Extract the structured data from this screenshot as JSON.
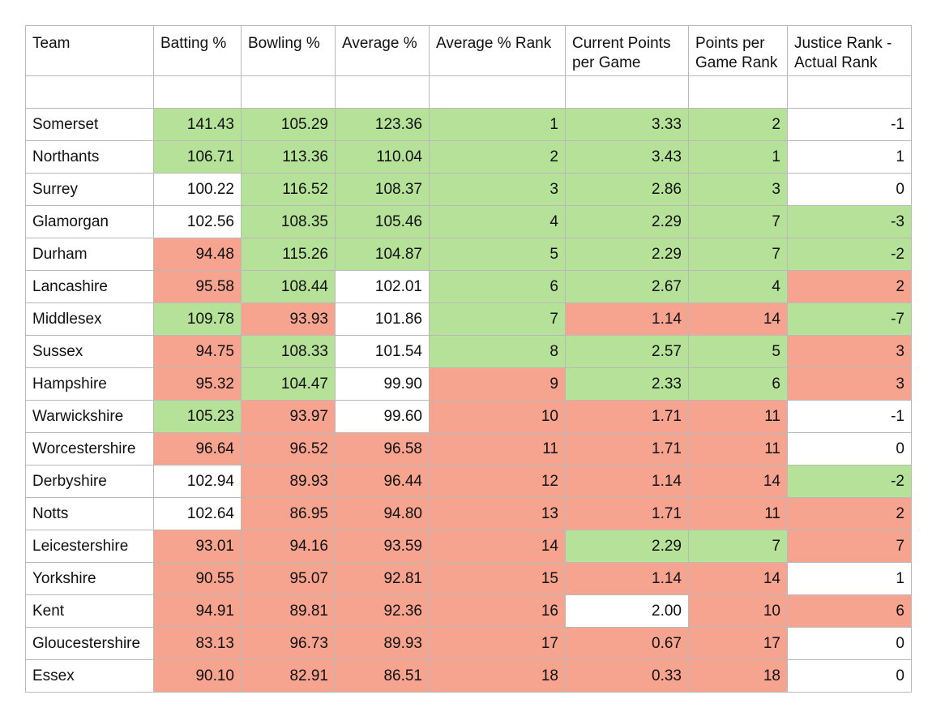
{
  "headers": [
    "Team",
    "Batting %",
    "Bowling %",
    "Average %",
    "Average % Rank",
    "Current Points per Game",
    "Points per Game Rank",
    "Justice Rank - Actual Rank"
  ],
  "rows": [
    {
      "team": "Somerset",
      "cells": [
        [
          "141.43",
          "g"
        ],
        [
          "105.29",
          "g"
        ],
        [
          "123.36",
          "g"
        ],
        [
          "1",
          "g"
        ],
        [
          "3.33",
          "g"
        ],
        [
          "2",
          "g"
        ],
        [
          "-1",
          "w"
        ]
      ]
    },
    {
      "team": "Northants",
      "cells": [
        [
          "106.71",
          "g"
        ],
        [
          "113.36",
          "g"
        ],
        [
          "110.04",
          "g"
        ],
        [
          "2",
          "g"
        ],
        [
          "3.43",
          "g"
        ],
        [
          "1",
          "g"
        ],
        [
          "1",
          "w"
        ]
      ]
    },
    {
      "team": "Surrey",
      "cells": [
        [
          "100.22",
          "w"
        ],
        [
          "116.52",
          "g"
        ],
        [
          "108.37",
          "g"
        ],
        [
          "3",
          "g"
        ],
        [
          "2.86",
          "g"
        ],
        [
          "3",
          "g"
        ],
        [
          "0",
          "w"
        ]
      ]
    },
    {
      "team": "Glamorgan",
      "cells": [
        [
          "102.56",
          "w"
        ],
        [
          "108.35",
          "g"
        ],
        [
          "105.46",
          "g"
        ],
        [
          "4",
          "g"
        ],
        [
          "2.29",
          "g"
        ],
        [
          "7",
          "g"
        ],
        [
          "-3",
          "g"
        ]
      ]
    },
    {
      "team": "Durham",
      "cells": [
        [
          "94.48",
          "r"
        ],
        [
          "115.26",
          "g"
        ],
        [
          "104.87",
          "g"
        ],
        [
          "5",
          "g"
        ],
        [
          "2.29",
          "g"
        ],
        [
          "7",
          "g"
        ],
        [
          "-2",
          "g"
        ]
      ]
    },
    {
      "team": "Lancashire",
      "cells": [
        [
          "95.58",
          "r"
        ],
        [
          "108.44",
          "g"
        ],
        [
          "102.01",
          "w"
        ],
        [
          "6",
          "g"
        ],
        [
          "2.67",
          "g"
        ],
        [
          "4",
          "g"
        ],
        [
          "2",
          "r"
        ]
      ]
    },
    {
      "team": "Middlesex",
      "cells": [
        [
          "109.78",
          "g"
        ],
        [
          "93.93",
          "r"
        ],
        [
          "101.86",
          "w"
        ],
        [
          "7",
          "g"
        ],
        [
          "1.14",
          "r"
        ],
        [
          "14",
          "r"
        ],
        [
          "-7",
          "g"
        ]
      ]
    },
    {
      "team": "Sussex",
      "cells": [
        [
          "94.75",
          "r"
        ],
        [
          "108.33",
          "g"
        ],
        [
          "101.54",
          "w"
        ],
        [
          "8",
          "g"
        ],
        [
          "2.57",
          "g"
        ],
        [
          "5",
          "g"
        ],
        [
          "3",
          "r"
        ]
      ]
    },
    {
      "team": "Hampshire",
      "cells": [
        [
          "95.32",
          "r"
        ],
        [
          "104.47",
          "g"
        ],
        [
          "99.90",
          "w"
        ],
        [
          "9",
          "r"
        ],
        [
          "2.33",
          "g"
        ],
        [
          "6",
          "g"
        ],
        [
          "3",
          "r"
        ]
      ]
    },
    {
      "team": "Warwickshire",
      "cells": [
        [
          "105.23",
          "g"
        ],
        [
          "93.97",
          "r"
        ],
        [
          "99.60",
          "w"
        ],
        [
          "10",
          "r"
        ],
        [
          "1.71",
          "r"
        ],
        [
          "11",
          "r"
        ],
        [
          "-1",
          "w"
        ]
      ]
    },
    {
      "team": "Worcestershire",
      "cells": [
        [
          "96.64",
          "r"
        ],
        [
          "96.52",
          "r"
        ],
        [
          "96.58",
          "r"
        ],
        [
          "11",
          "r"
        ],
        [
          "1.71",
          "r"
        ],
        [
          "11",
          "r"
        ],
        [
          "0",
          "w"
        ]
      ]
    },
    {
      "team": "Derbyshire",
      "cells": [
        [
          "102.94",
          "w"
        ],
        [
          "89.93",
          "r"
        ],
        [
          "96.44",
          "r"
        ],
        [
          "12",
          "r"
        ],
        [
          "1.14",
          "r"
        ],
        [
          "14",
          "r"
        ],
        [
          "-2",
          "g"
        ]
      ]
    },
    {
      "team": "Notts",
      "cells": [
        [
          "102.64",
          "w"
        ],
        [
          "86.95",
          "r"
        ],
        [
          "94.80",
          "r"
        ],
        [
          "13",
          "r"
        ],
        [
          "1.71",
          "r"
        ],
        [
          "11",
          "r"
        ],
        [
          "2",
          "r"
        ]
      ]
    },
    {
      "team": "Leicestershire",
      "cells": [
        [
          "93.01",
          "r"
        ],
        [
          "94.16",
          "r"
        ],
        [
          "93.59",
          "r"
        ],
        [
          "14",
          "r"
        ],
        [
          "2.29",
          "g"
        ],
        [
          "7",
          "g"
        ],
        [
          "7",
          "r"
        ]
      ]
    },
    {
      "team": "Yorkshire",
      "cells": [
        [
          "90.55",
          "r"
        ],
        [
          "95.07",
          "r"
        ],
        [
          "92.81",
          "r"
        ],
        [
          "15",
          "r"
        ],
        [
          "1.14",
          "r"
        ],
        [
          "14",
          "r"
        ],
        [
          "1",
          "w"
        ]
      ]
    },
    {
      "team": "Kent",
      "cells": [
        [
          "94.91",
          "r"
        ],
        [
          "89.81",
          "r"
        ],
        [
          "92.36",
          "r"
        ],
        [
          "16",
          "r"
        ],
        [
          "2.00",
          "w"
        ],
        [
          "10",
          "r"
        ],
        [
          "6",
          "r"
        ]
      ]
    },
    {
      "team": "Gloucestershire",
      "cells": [
        [
          "83.13",
          "r"
        ],
        [
          "96.73",
          "r"
        ],
        [
          "89.93",
          "r"
        ],
        [
          "17",
          "r"
        ],
        [
          "0.67",
          "r"
        ],
        [
          "17",
          "r"
        ],
        [
          "0",
          "w"
        ]
      ]
    },
    {
      "team": "Essex",
      "cells": [
        [
          "90.10",
          "r"
        ],
        [
          "82.91",
          "r"
        ],
        [
          "86.51",
          "r"
        ],
        [
          "18",
          "r"
        ],
        [
          "0.33",
          "r"
        ],
        [
          "18",
          "r"
        ],
        [
          "0",
          "w"
        ]
      ]
    }
  ],
  "colors": {
    "good": "#b5e199",
    "bad": "#f6a38f",
    "neutral": "#ffffff",
    "border": "#b9b9b9"
  }
}
